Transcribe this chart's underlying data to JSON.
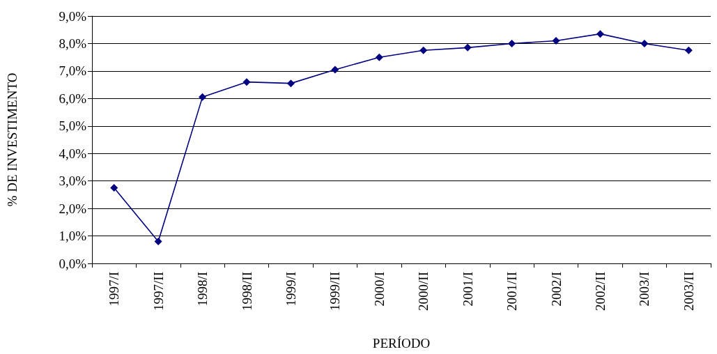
{
  "chart_data": {
    "type": "line",
    "xlabel": "PERÍODO",
    "ylabel": "% DE INVESTIMENTO",
    "categories": [
      "1997/I",
      "1997/II",
      "1998/I",
      "1998/II",
      "1999/I",
      "1999/II",
      "2000/I",
      "2000/II",
      "2001/I",
      "2001/II",
      "2002/I",
      "2002/II",
      "2003/I",
      "2003/II"
    ],
    "series": [
      {
        "color": "#000080",
        "values": [
          2.75,
          0.8,
          6.05,
          6.6,
          6.55,
          7.05,
          7.5,
          7.75,
          7.85,
          8.0,
          8.1,
          8.35,
          8.0,
          7.75
        ]
      }
    ],
    "ylim": [
      0,
      9
    ],
    "yticks": [
      {
        "value": 0,
        "label": "0,0%"
      },
      {
        "value": 1,
        "label": "1,0%"
      },
      {
        "value": 2,
        "label": "2,0%"
      },
      {
        "value": 3,
        "label": "3,0%"
      },
      {
        "value": 4,
        "label": "4,0%"
      },
      {
        "value": 5,
        "label": "5,0%"
      },
      {
        "value": 6,
        "label": "6,0%"
      },
      {
        "value": 7,
        "label": "7,0%"
      },
      {
        "value": 8,
        "label": "8,0%"
      },
      {
        "value": 9,
        "label": "9,0%"
      }
    ],
    "grid": "y",
    "marker": "diamond",
    "line_style": "solid"
  }
}
